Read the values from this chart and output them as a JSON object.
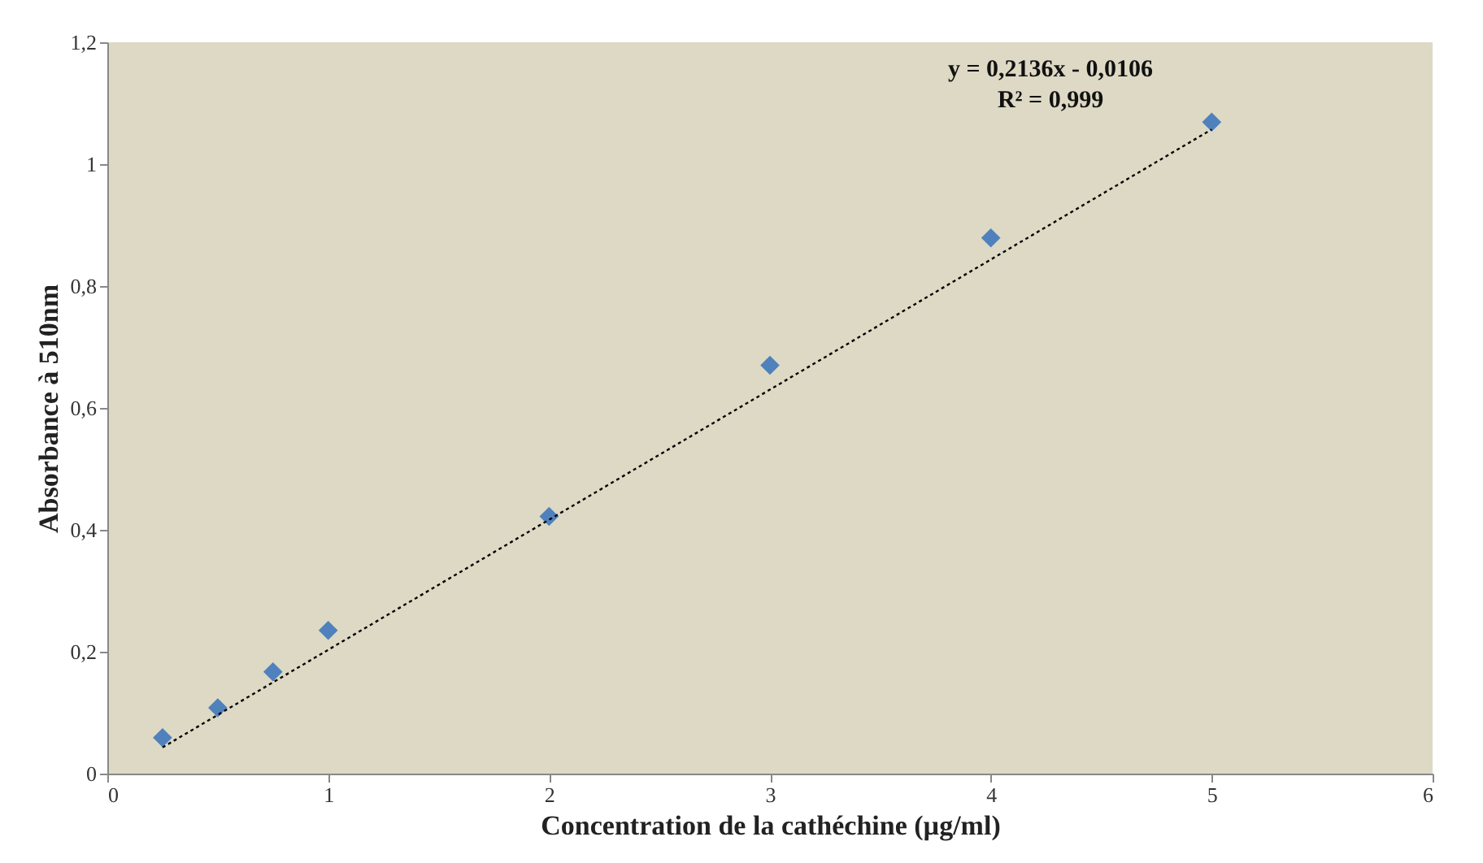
{
  "chart_data": {
    "type": "scatter",
    "xlabel": "Concentration de la cathéchine (µg/ml)",
    "ylabel": "Absorbance à 510nm",
    "x": [
      0.25,
      0.5,
      0.75,
      1,
      2,
      3,
      4,
      5
    ],
    "series": [
      {
        "color": "#4f81bd",
        "marker": "diamond",
        "values": [
          0.059,
          0.108,
          0.167,
          0.235,
          0.422,
          0.67,
          0.879,
          1.069
        ]
      },
      {
        "type": "line",
        "color": "#000000",
        "line_style": "dotted",
        "x": [
          0.25,
          5
        ],
        "values": [
          0.043,
          1.057
        ]
      }
    ],
    "annotations": [
      "y = 0,2136x - 0,0106",
      "R² = 0,999"
    ],
    "xlim": [
      0,
      6
    ],
    "xticks": [
      0,
      1,
      2,
      3,
      4,
      5,
      6
    ],
    "ylim": [
      0,
      1.2
    ],
    "yticks": [
      0,
      {
        "value": 0.2,
        "label": "0,2"
      },
      {
        "value": 0.4,
        "label": "0,4"
      },
      {
        "value": 0.6,
        "label": "0,6"
      },
      {
        "value": 0.8,
        "label": "0,8"
      },
      1,
      {
        "value": 1.2,
        "label": "1,2"
      }
    ],
    "grid": false
  }
}
